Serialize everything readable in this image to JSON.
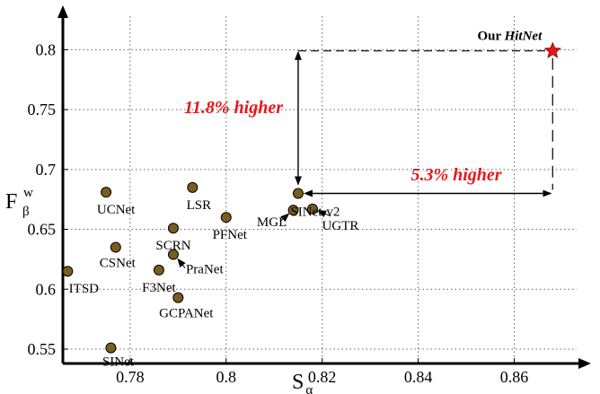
{
  "chart_data": {
    "type": "scatter",
    "xlabel": "S",
    "xlabel_sub": "α",
    "ylabel": "F",
    "ylabel_sup": "w",
    "ylabel_sub": "β",
    "xlim": [
      0.766,
      0.873
    ],
    "ylim": [
      0.538,
      0.828
    ],
    "xticks": [
      0.78,
      0.8,
      0.82,
      0.84,
      0.86
    ],
    "xtick_labels": [
      "0.78",
      "0.8",
      "0.82",
      "0.84",
      "0.86"
    ],
    "yticks": [
      0.55,
      0.6,
      0.65,
      0.7,
      0.75,
      0.8
    ],
    "ytick_labels": [
      "0.55",
      "0.6",
      "0.65",
      "0.7",
      "0.75",
      "0.8"
    ],
    "grid": true,
    "points": [
      {
        "label": "SINet",
        "x": 0.776,
        "y": 0.551
      },
      {
        "label": "ITSD",
        "x": 0.767,
        "y": 0.615
      },
      {
        "label": "CSNet",
        "x": 0.777,
        "y": 0.635
      },
      {
        "label": "UCNet",
        "x": 0.775,
        "y": 0.681
      },
      {
        "label": "F3Net",
        "x": 0.786,
        "y": 0.616
      },
      {
        "label": "GCPANet",
        "x": 0.79,
        "y": 0.593
      },
      {
        "label": "PraNet",
        "x": 0.789,
        "y": 0.629
      },
      {
        "label": "SCRN",
        "x": 0.789,
        "y": 0.651
      },
      {
        "label": "LSR",
        "x": 0.793,
        "y": 0.685
      },
      {
        "label": "PFNet",
        "x": 0.8,
        "y": 0.66
      },
      {
        "label": "MGL",
        "x": 0.814,
        "y": 0.666
      },
      {
        "label": "SINet-v2",
        "x": 0.815,
        "y": 0.68
      },
      {
        "label": "UGTR",
        "x": 0.818,
        "y": 0.667
      }
    ],
    "highlight": {
      "label_prefix": "Our ",
      "label_name": "HitNet",
      "x": 0.868,
      "y": 0.799,
      "marker": "star",
      "color": "#e8161c"
    },
    "annotations": [
      {
        "text": "11.8% higher"
      },
      {
        "text": "5.3% higher"
      }
    ],
    "point_color": "#7a5c1e",
    "annotation_color": "#e8161c"
  }
}
